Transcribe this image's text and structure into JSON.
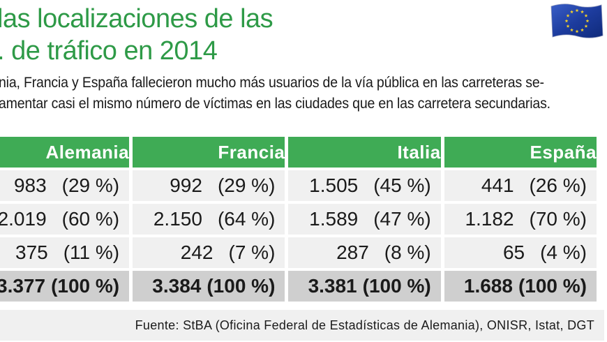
{
  "title": {
    "line1": "las localizaciones de las",
    "line2": ". de tráfico en 2014"
  },
  "flag_icon": "eu-flag-icon",
  "colors": {
    "accent": "#3fab55",
    "title": "#2e9a47",
    "cell": "#f0f0f0",
    "total": "#cfcfcf"
  },
  "intro": {
    "line1": "nia, Francia y España fallecieron mucho más usuarios de la vía pública en las carreteras se-",
    "line2": "amentar casi el mismo número de víctimas en las ciudades que en las carretera secundarias."
  },
  "table": {
    "headers": [
      "Alemania",
      "Francia",
      "Italia",
      "España"
    ],
    "rows": [
      [
        {
          "num": "983",
          "pct": "(29 %)"
        },
        {
          "num": "992",
          "pct": "(29 %)"
        },
        {
          "num": "1.505",
          "pct": "(45 %)"
        },
        {
          "num": "441",
          "pct": "(26 %)"
        }
      ],
      [
        {
          "num": "2.019",
          "pct": "(60 %)"
        },
        {
          "num": "2.150",
          "pct": "(64 %)"
        },
        {
          "num": "1.589",
          "pct": "(47 %)"
        },
        {
          "num": "1.182",
          "pct": "(70 %)"
        }
      ],
      [
        {
          "num": "375",
          "pct": "(11 %)"
        },
        {
          "num": "242",
          "pct": "(7 %)"
        },
        {
          "num": "287",
          "pct": "(8 %)"
        },
        {
          "num": "65",
          "pct": "(4 %)"
        }
      ]
    ],
    "totals": [
      {
        "num": "3.377",
        "pct": "(100 %)"
      },
      {
        "num": "3.384",
        "pct": "(100 %)"
      },
      {
        "num": "3.381",
        "pct": "(100 %)"
      },
      {
        "num": "1.688",
        "pct": "(100 %)"
      }
    ]
  },
  "source": "Fuente: StBA (Oficina Federal de Estadísticas de Alemania), ONISR, Istat, DGT"
}
